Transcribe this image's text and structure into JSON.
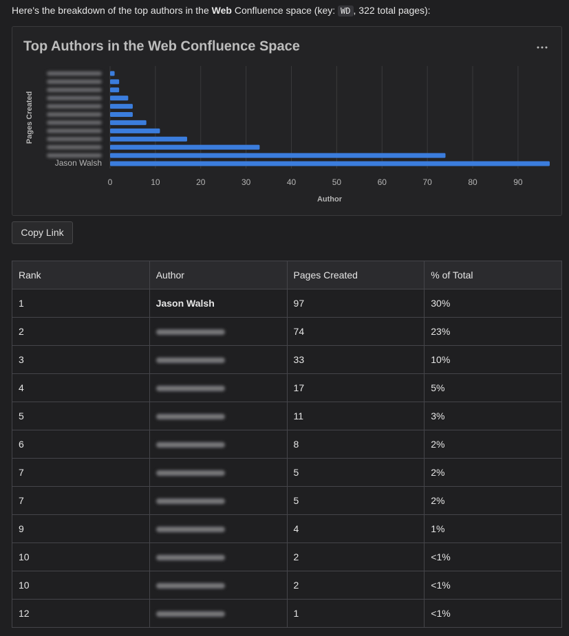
{
  "intro": {
    "before": "Here's the breakdown of the top authors in the ",
    "bold": "Web",
    "middle": " Confluence space (key: ",
    "code": "WD",
    "after": ", 322 total pages):"
  },
  "chart_data": {
    "type": "bar",
    "orientation": "horizontal",
    "title": "Top Authors in the Web Confluence Space",
    "x_label": "Author",
    "y_label": "Pages Created",
    "categories": [
      "Jason Walsh",
      null,
      null,
      null,
      null,
      null,
      null,
      null,
      null,
      null,
      null,
      null
    ],
    "values": [
      97,
      74,
      33,
      17,
      11,
      8,
      5,
      5,
      4,
      2,
      2,
      1
    ],
    "color": "#3b7ddd",
    "xlim": [
      0,
      97
    ],
    "xticks": [
      0,
      10,
      20,
      30,
      40,
      50,
      60,
      70,
      80,
      90
    ],
    "grid": true
  },
  "button": "Copy Link",
  "table": {
    "header": [
      "Rank",
      "Author",
      "Pages Created",
      "% of Total"
    ],
    "rows": [
      [
        1,
        "Jason Walsh",
        97,
        "30%"
      ],
      [
        2,
        null,
        74,
        "23%"
      ],
      [
        3,
        null,
        33,
        "10%"
      ],
      [
        4,
        null,
        17,
        "5%"
      ],
      [
        5,
        null,
        11,
        "3%"
      ],
      [
        6,
        null,
        8,
        "2%"
      ],
      [
        7,
        null,
        5,
        "2%"
      ],
      [
        7,
        null,
        5,
        "2%"
      ],
      [
        9,
        null,
        4,
        "1%"
      ],
      [
        10,
        null,
        2,
        "<1%"
      ],
      [
        10,
        null,
        2,
        "<1%"
      ],
      [
        12,
        null,
        1,
        "<1%"
      ]
    ]
  }
}
